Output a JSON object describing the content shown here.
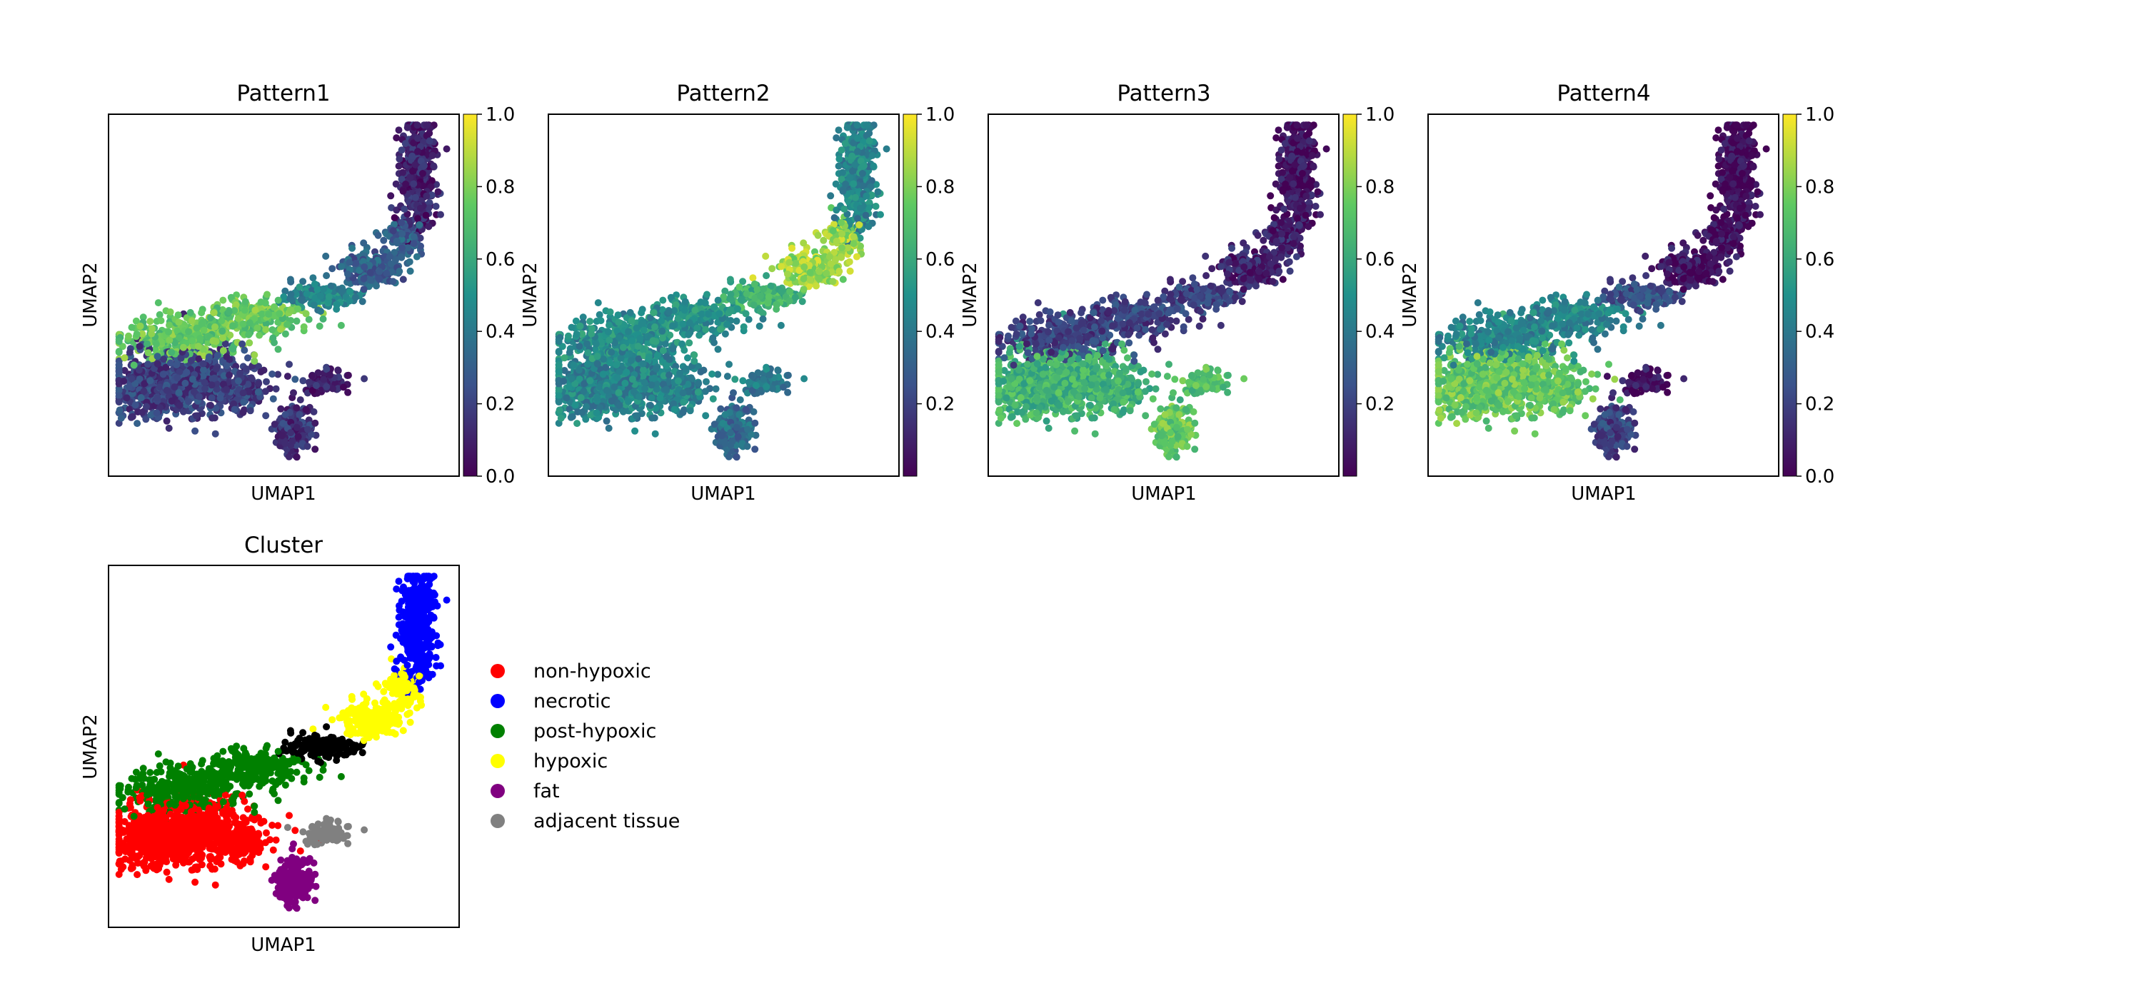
{
  "colormap": [
    "#440154",
    "#3b528b",
    "#21918c",
    "#5ec962",
    "#fde725"
  ],
  "chart_data": [
    {
      "type": "scatter",
      "title": "Pattern1",
      "xlabel": "UMAP1",
      "ylabel": "UMAP2",
      "colorbar": {
        "min": 0.0,
        "max": 1.0,
        "ticks": [
          "0.0",
          "0.2",
          "0.4",
          "0.6",
          "0.8",
          "1.0"
        ],
        "tick_values": [
          0.0,
          0.2,
          0.4,
          0.6,
          0.8,
          1.0
        ]
      },
      "regions": {
        "left_body": 0.2,
        "upper_band": 0.75,
        "middle_neck": 0.45,
        "hypoxic_tail": 0.3,
        "top_arm": 0.1,
        "right_loop": 0.1,
        "bottom_tail": 0.15
      }
    },
    {
      "type": "scatter",
      "title": "Pattern2",
      "xlabel": "UMAP1",
      "ylabel": "UMAP2",
      "colorbar": {
        "min": 0.0,
        "max": 1.0,
        "ticks": [
          "0.2",
          "0.4",
          "0.6",
          "0.8",
          "1.0"
        ],
        "tick_values": [
          0.2,
          0.4,
          0.6,
          0.8,
          1.0
        ]
      },
      "regions": {
        "left_body": 0.45,
        "upper_band": 0.5,
        "middle_neck": 0.65,
        "hypoxic_tail": 0.85,
        "top_arm": 0.45,
        "right_loop": 0.4,
        "bottom_tail": 0.35
      }
    },
    {
      "type": "scatter",
      "title": "Pattern3",
      "xlabel": "UMAP1",
      "ylabel": "UMAP2",
      "colorbar": {
        "min": 0.0,
        "max": 1.0,
        "ticks": [
          "0.2",
          "0.4",
          "0.6",
          "0.8",
          "1.0"
        ],
        "tick_values": [
          0.2,
          0.4,
          0.6,
          0.8,
          1.0
        ]
      },
      "regions": {
        "left_body": 0.65,
        "upper_band": 0.2,
        "middle_neck": 0.2,
        "hypoxic_tail": 0.1,
        "top_arm": 0.05,
        "right_loop": 0.7,
        "bottom_tail": 0.75
      }
    },
    {
      "type": "scatter",
      "title": "Pattern4",
      "xlabel": "UMAP1",
      "ylabel": "UMAP2",
      "colorbar": {
        "min": 0.0,
        "max": 1.0,
        "ticks": [
          "0.0",
          "0.2",
          "0.4",
          "0.6",
          "0.8",
          "1.0"
        ],
        "tick_values": [
          0.0,
          0.2,
          0.4,
          0.6,
          0.8,
          1.0
        ]
      },
      "regions": {
        "left_body": 0.75,
        "upper_band": 0.45,
        "middle_neck": 0.25,
        "hypoxic_tail": 0.05,
        "top_arm": 0.02,
        "right_loop": 0.05,
        "bottom_tail": 0.2
      }
    },
    {
      "type": "scatter",
      "title": "Cluster",
      "xlabel": "UMAP1",
      "ylabel": "UMAP2",
      "legend_position": "right",
      "categories": [
        {
          "name": "non-hypoxic",
          "color": "#ff0000",
          "region": "left_body"
        },
        {
          "name": "necrotic",
          "color": "#0000ff",
          "region": "top_arm"
        },
        {
          "name": "post-hypoxic",
          "color": "#008000",
          "region": "upper_band"
        },
        {
          "name": "hypoxic",
          "color": "#ffff00",
          "region": "hypoxic_tail"
        },
        {
          "name": "fat",
          "color": "#800080",
          "region": "bottom_tail"
        },
        {
          "name": "adjacent tissue",
          "color": "#808080",
          "region": "right_loop"
        }
      ]
    }
  ]
}
